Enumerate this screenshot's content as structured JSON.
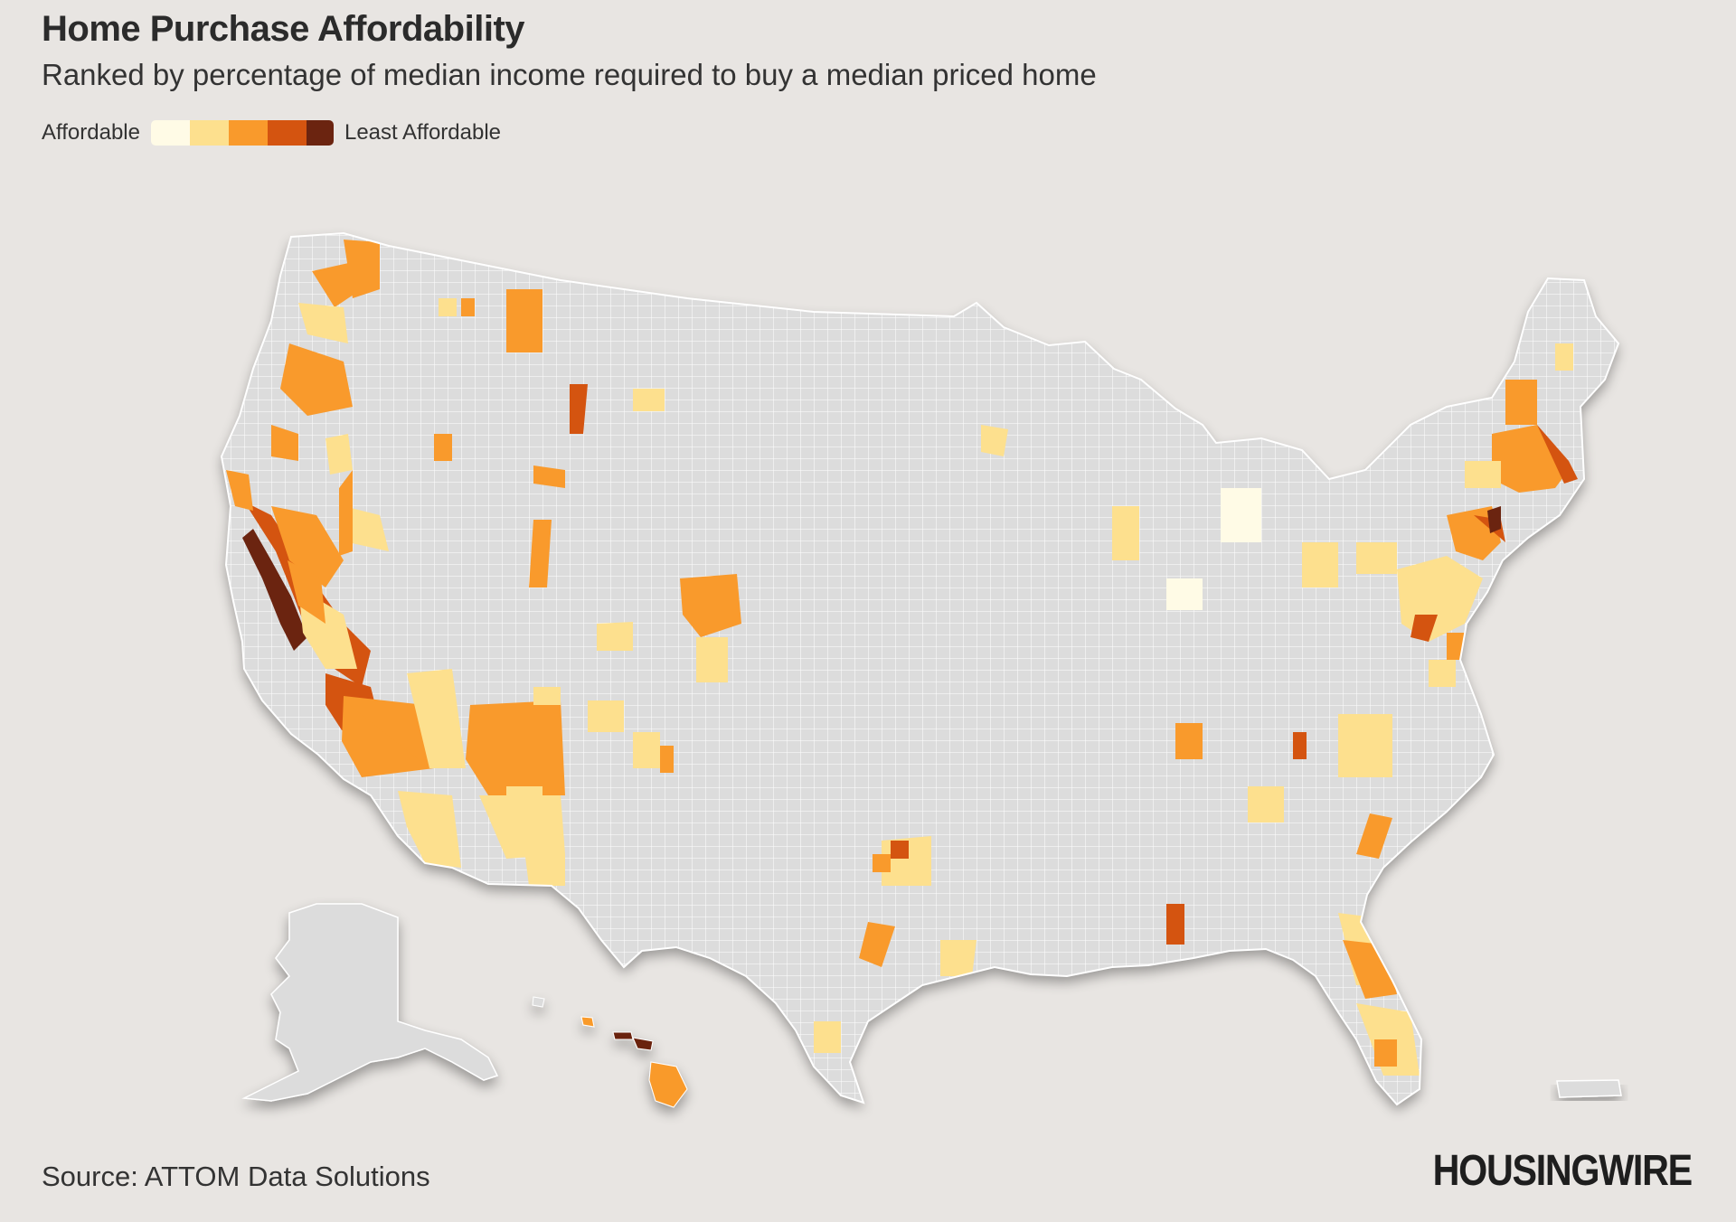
{
  "title": "Home Purchase Affordability",
  "subtitle": "Ranked by percentage of median income required to buy a median priced home",
  "legend": {
    "low_label": "Affordable",
    "high_label": "Least Affordable",
    "colors": [
      "#fffbe6",
      "#fde08e",
      "#f99a2c",
      "#d45410",
      "#6b2410"
    ]
  },
  "map": {
    "land_color": "#dcdcdc",
    "border_color": "#ffffff",
    "regions": [
      "Contiguous United States",
      "Alaska",
      "Hawaii",
      "Puerto Rico"
    ]
  },
  "source": "Source: ATTOM Data Solutions",
  "logo": "HOUSINGWIRE"
}
